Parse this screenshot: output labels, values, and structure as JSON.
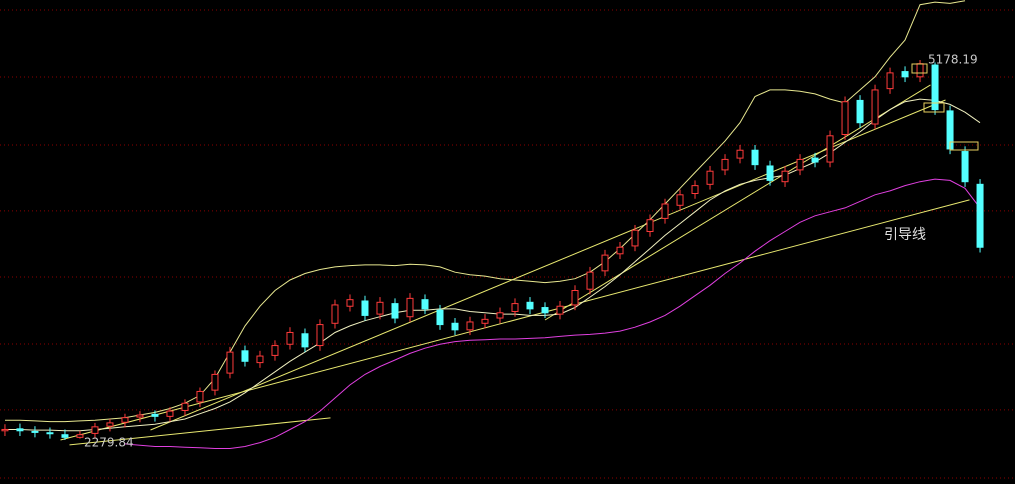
{
  "chart_data": {
    "type": "candlestick",
    "xlim": [
      -0.33,
      67.33
    ],
    "ylim": [
      1944,
      5636
    ],
    "grid_levels": [
      5560,
      5049,
      4530,
      4027,
      3523,
      3012,
      2509,
      1990
    ],
    "grid_color": "#8b0000",
    "up_color": "#ff3b3b",
    "down_color": "#54ffff",
    "candles": {
      "open": [
        2350,
        2365,
        2345,
        2335,
        2320,
        2300,
        2330,
        2385,
        2415,
        2455,
        2475,
        2460,
        2505,
        2570,
        2660,
        2790,
        2960,
        2870,
        2925,
        3010,
        3090,
        3000,
        3170,
        3300,
        3340,
        3240,
        3320,
        3220,
        3350,
        3270,
        3170,
        3120,
        3170,
        3210,
        3260,
        3330,
        3290,
        3240,
        3310,
        3430,
        3570,
        3700,
        3760,
        3870,
        3970,
        4070,
        4160,
        4230,
        4340,
        4430,
        4490,
        4370,
        4250,
        4340,
        4430,
        4400,
        4610,
        4870,
        4690,
        4960,
        5090,
        5050,
        5140,
        4790,
        4480,
        4230
      ],
      "high": [
        2400,
        2405,
        2385,
        2375,
        2360,
        2350,
        2410,
        2440,
        2480,
        2500,
        2505,
        2530,
        2590,
        2680,
        2810,
        2990,
        3000,
        2960,
        3040,
        3140,
        3130,
        3200,
        3350,
        3390,
        3380,
        3370,
        3360,
        3400,
        3390,
        3310,
        3210,
        3220,
        3240,
        3290,
        3360,
        3370,
        3330,
        3340,
        3460,
        3600,
        3730,
        3790,
        3920,
        4000,
        4120,
        4190,
        4260,
        4370,
        4460,
        4530,
        4530,
        4410,
        4370,
        4460,
        4470,
        4640,
        4900,
        4910,
        4990,
        5120,
        5130,
        5178.19,
        5160,
        4830,
        4520,
        4270
      ],
      "low": [
        2310,
        2310,
        2300,
        2290,
        2279.84,
        2290,
        2290,
        2345,
        2375,
        2415,
        2420,
        2420,
        2465,
        2530,
        2620,
        2750,
        2840,
        2830,
        2885,
        2970,
        2950,
        2960,
        3130,
        3260,
        3190,
        3200,
        3170,
        3180,
        3240,
        3120,
        3080,
        3080,
        3130,
        3170,
        3220,
        3240,
        3210,
        3200,
        3270,
        3390,
        3530,
        3660,
        3720,
        3830,
        3930,
        4030,
        4120,
        4190,
        4300,
        4390,
        4340,
        4220,
        4210,
        4300,
        4360,
        4360,
        4570,
        4660,
        4650,
        4920,
        5010,
        5010,
        4760,
        4460,
        4210,
        3710
      ],
      "close": [
        2360,
        2350,
        2340,
        2330,
        2300,
        2320,
        2380,
        2410,
        2450,
        2470,
        2460,
        2500,
        2560,
        2650,
        2780,
        2950,
        2880,
        2920,
        3000,
        3100,
        2990,
        3160,
        3310,
        3350,
        3230,
        3330,
        3210,
        3360,
        3280,
        3160,
        3120,
        3180,
        3200,
        3250,
        3320,
        3280,
        3250,
        3300,
        3420,
        3560,
        3690,
        3750,
        3880,
        3960,
        4080,
        4150,
        4220,
        4330,
        4420,
        4490,
        4380,
        4260,
        4330,
        4420,
        4400,
        4600,
        4860,
        4700,
        4950,
        5080,
        5050,
        5150,
        4800,
        4500,
        4250,
        3750
      ]
    },
    "series": [
      {
        "color": "#e8e890",
        "values": [
          2430,
          2430,
          2425,
          2420,
          2420,
          2425,
          2430,
          2440,
          2450,
          2470,
          2490,
          2520,
          2560,
          2620,
          2750,
          2950,
          3150,
          3300,
          3420,
          3500,
          3550,
          3580,
          3600,
          3610,
          3615,
          3615,
          3610,
          3620,
          3615,
          3600,
          3560,
          3540,
          3530,
          3510,
          3500,
          3490,
          3480,
          3490,
          3510,
          3560,
          3640,
          3740,
          3850,
          3960,
          4080,
          4200,
          4320,
          4440,
          4560,
          4700,
          4900,
          4950,
          4950,
          4940,
          4920,
          4880,
          4850,
          4950,
          5050,
          5200,
          5330,
          5600,
          5620,
          5610,
          5630,
          null
        ]
      },
      {
        "color": "#f0f0c0",
        "values": [
          2360,
          2360,
          2355,
          2355,
          2350,
          2350,
          2360,
          2370,
          2380,
          2390,
          2400,
          2420,
          2440,
          2480,
          2520,
          2570,
          2640,
          2720,
          2800,
          2880,
          2950,
          3020,
          3100,
          3150,
          3190,
          3220,
          3250,
          3270,
          3270,
          3280,
          3280,
          3260,
          3250,
          3240,
          3240,
          3230,
          3230,
          3240,
          3290,
          3370,
          3450,
          3540,
          3640,
          3740,
          3840,
          3930,
          4020,
          4110,
          4180,
          4230,
          4260,
          4280,
          4300,
          4350,
          4400,
          4470,
          4550,
          4630,
          4720,
          4800,
          4860,
          4880,
          4870,
          4840,
          4780,
          4700
        ]
      },
      {
        "color": "#e040e0",
        "values": [
          null,
          null,
          null,
          null,
          null,
          null,
          null,
          null,
          2250,
          2240,
          2230,
          2230,
          2225,
          2220,
          2215,
          2215,
          2230,
          2260,
          2300,
          2360,
          2420,
          2500,
          2600,
          2700,
          2780,
          2840,
          2890,
          2940,
          2980,
          3010,
          3030,
          3040,
          3045,
          3050,
          3050,
          3055,
          3060,
          3070,
          3080,
          3085,
          3095,
          3110,
          3140,
          3180,
          3230,
          3300,
          3380,
          3460,
          3550,
          3630,
          3720,
          3800,
          3870,
          3940,
          3990,
          4020,
          4050,
          4100,
          4150,
          4180,
          4220,
          4250,
          4270,
          4260,
          4200,
          4050
        ]
      }
    ],
    "guide_lines": [
      {
        "color": "#e8e870",
        "x": [
          4.3,
          21.7
        ],
        "y": [
          2242,
          2448
        ]
      },
      {
        "color": "#e8e870",
        "x": [
          3.7,
          64.3
        ],
        "y": [
          2280,
          4111
        ]
      },
      {
        "color": "#e8e870",
        "x": [
          9.7,
          62.7
        ],
        "y": [
          2356,
          4873
        ]
      },
      {
        "color": "#e8e870",
        "x": [
          36,
          61.7
        ],
        "y": [
          3195,
          4988
        ]
      }
    ],
    "annotation": "引导线"
  }
}
